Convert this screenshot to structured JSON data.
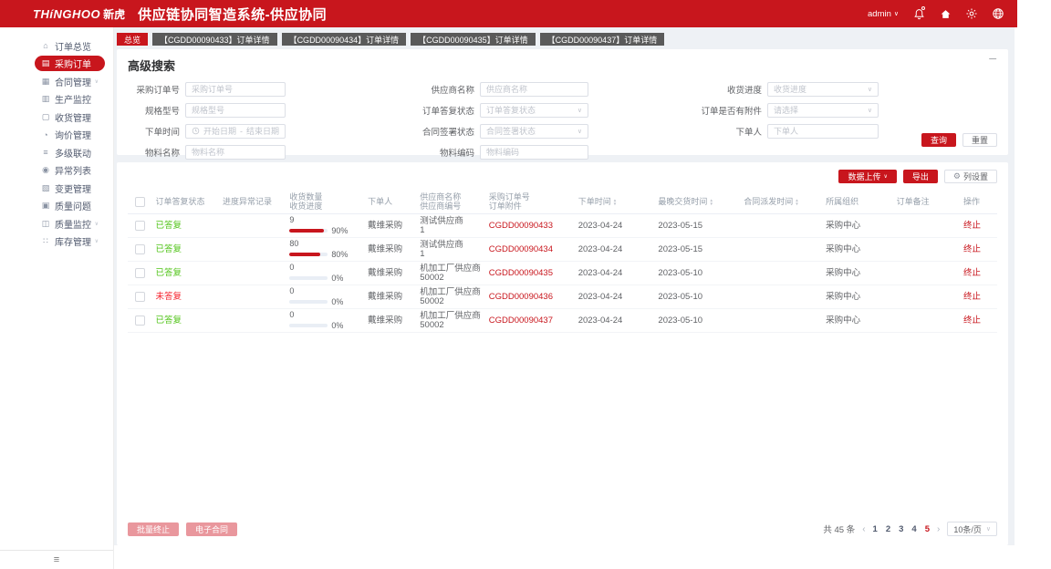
{
  "header": {
    "logo_en": "THíNGHOO",
    "logo_cn": "新虎",
    "title": "供应链协同智造系统-供应协同",
    "user": "admin",
    "brand_red": "#c8161d"
  },
  "sidebar": {
    "items": [
      {
        "id": "order-overview",
        "label": "订单总览",
        "icon": "order-overview-icon",
        "glyph": "⌂",
        "active": false,
        "expandable": false
      },
      {
        "id": "purchase-order",
        "label": "采购订单",
        "icon": "purchase-order-icon",
        "glyph": "▤",
        "active": true,
        "expandable": false
      },
      {
        "id": "contract-management",
        "label": "合同管理",
        "icon": "contract-management-icon",
        "glyph": "▦",
        "active": false,
        "expandable": true
      },
      {
        "id": "production-monitoring",
        "label": "生产监控",
        "icon": "production-monitoring-icon",
        "glyph": "▥",
        "active": false,
        "expandable": false
      },
      {
        "id": "receiving-management",
        "label": "收货管理",
        "icon": "receiving-management-icon",
        "glyph": "▢",
        "active": false,
        "expandable": false
      },
      {
        "id": "inquiry-management",
        "label": "询价管理",
        "icon": "inquiry-management-icon",
        "glyph": "◔",
        "active": false,
        "expandable": false
      },
      {
        "id": "multi-level-linkage",
        "label": "多级联动",
        "icon": "multi-level-linkage-icon",
        "glyph": "≡",
        "active": false,
        "expandable": false
      },
      {
        "id": "exception-list",
        "label": "异常列表",
        "icon": "exception-list-icon",
        "glyph": "◉",
        "active": false,
        "expandable": false
      },
      {
        "id": "change-management",
        "label": "变更管理",
        "icon": "change-management-icon",
        "glyph": "▧",
        "active": false,
        "expandable": false
      },
      {
        "id": "quality-issues",
        "label": "质量问题",
        "icon": "quality-issues-icon",
        "glyph": "▣",
        "active": false,
        "expandable": false
      },
      {
        "id": "quality-monitoring",
        "label": "质量监控",
        "icon": "quality-monitoring-icon",
        "glyph": "◫",
        "active": false,
        "expandable": true
      },
      {
        "id": "inventory-management",
        "label": "库存管理",
        "icon": "inventory-management-icon",
        "glyph": "∷",
        "active": false,
        "expandable": true
      }
    ]
  },
  "tabs": [
    {
      "id": "overview",
      "label": "总览",
      "active": true
    },
    {
      "id": "cgdd00090433",
      "label": "【CGDD00090433】订单详情",
      "active": false
    },
    {
      "id": "cgdd00090434",
      "label": "【CGDD00090434】订单详情",
      "active": false
    },
    {
      "id": "cgdd00090435",
      "label": "【CGDD00090435】订单详情",
      "active": false
    },
    {
      "id": "cgdd00090437",
      "label": "【CGDD00090437】订单详情",
      "active": false
    }
  ],
  "search": {
    "title": "高级搜索",
    "columns": [
      [
        {
          "name": "purchase-order-no",
          "label": "采购订单号",
          "type": "input",
          "placeholder": "采购订单号"
        },
        {
          "name": "spec-model",
          "label": "规格型号",
          "type": "input",
          "placeholder": "规格型号"
        },
        {
          "name": "order-time",
          "label": "下单时间",
          "type": "daterange",
          "start_placeholder": "开始日期",
          "separator": "-",
          "end_placeholder": "结束日期"
        },
        {
          "name": "material-name",
          "label": "物料名称",
          "type": "input",
          "placeholder": "物料名称"
        }
      ],
      [
        {
          "name": "supplier-name",
          "label": "供应商名称",
          "type": "input",
          "placeholder": "供应商名称"
        },
        {
          "name": "order-reply-status",
          "label": "订单答复状态",
          "type": "select",
          "placeholder": "订单答复状态"
        },
        {
          "name": "contract-sign-status",
          "label": "合同签署状态",
          "type": "select",
          "placeholder": "合同签署状态"
        },
        {
          "name": "material-code",
          "label": "物料编码",
          "type": "input",
          "placeholder": "物料编码"
        }
      ],
      [
        {
          "name": "receiving-progress",
          "label": "收货进度",
          "type": "select",
          "placeholder": "收货进度"
        },
        {
          "name": "order-has-attachment",
          "label": "订单是否有附件",
          "type": "select",
          "placeholder": "请选择"
        },
        {
          "name": "orderer",
          "label": "下单人",
          "type": "input",
          "placeholder": "下单人"
        }
      ]
    ],
    "query_label": "查询",
    "reset_label": "重置"
  },
  "toolbar": {
    "upload_label": "数据上传",
    "export_label": "导出",
    "column_settings_label": "列设置"
  },
  "table": {
    "headers": [
      {
        "key": "select",
        "type": "checkbox",
        "lines": []
      },
      {
        "key": "reply_status",
        "lines": [
          "订单答复状态"
        ]
      },
      {
        "key": "progress_exception",
        "lines": [
          "进度异常记录"
        ]
      },
      {
        "key": "receiving",
        "lines": [
          "收货数量",
          "收货进度"
        ]
      },
      {
        "key": "orderer",
        "lines": [
          "下单人"
        ]
      },
      {
        "key": "supplier",
        "lines": [
          "供应商名称",
          "供应商编号"
        ]
      },
      {
        "key": "order_no",
        "lines": [
          "采购订单号",
          "订单附件"
        ]
      },
      {
        "key": "order_time",
        "lines": [
          "下单时间"
        ],
        "sortable": true
      },
      {
        "key": "latest_delivery_time",
        "lines": [
          "最晚交货时间"
        ],
        "sortable": true
      },
      {
        "key": "contract_dispatch_time",
        "lines": [
          "合同派发时间"
        ],
        "sortable": true
      },
      {
        "key": "org",
        "lines": [
          "所属组织"
        ]
      },
      {
        "key": "remark",
        "lines": [
          "订单备注"
        ]
      },
      {
        "key": "action",
        "lines": [
          "操作"
        ]
      }
    ],
    "status_colors": {
      "replied": "#52c41a",
      "unreplied": "#f5222d"
    },
    "rows": [
      {
        "reply_status": "已答复",
        "reply_state": "replied",
        "progress_exception": "",
        "receive_qty": "9",
        "receive_pct": 90,
        "receive_pct_label": "90%",
        "orderer": "戴维采购",
        "supplier_name": "测试供应商",
        "supplier_code": "1",
        "order_no": "CGDD00090433",
        "order_time": "2023-04-24",
        "latest_delivery_time": "2023-05-15",
        "contract_dispatch_time": "",
        "org": "采购中心",
        "remark": "",
        "action": "终止"
      },
      {
        "reply_status": "已答复",
        "reply_state": "replied",
        "progress_exception": "",
        "receive_qty": "80",
        "receive_pct": 80,
        "receive_pct_label": "80%",
        "orderer": "戴维采购",
        "supplier_name": "测试供应商",
        "supplier_code": "1",
        "order_no": "CGDD00090434",
        "order_time": "2023-04-24",
        "latest_delivery_time": "2023-05-15",
        "contract_dispatch_time": "",
        "org": "采购中心",
        "remark": "",
        "action": "终止"
      },
      {
        "reply_status": "已答复",
        "reply_state": "replied",
        "progress_exception": "",
        "receive_qty": "0",
        "receive_pct": 0,
        "receive_pct_label": "0%",
        "orderer": "戴维采购",
        "supplier_name": "机加工厂供应商",
        "supplier_code": "50002",
        "order_no": "CGDD00090435",
        "order_time": "2023-04-24",
        "latest_delivery_time": "2023-05-10",
        "contract_dispatch_time": "",
        "org": "采购中心",
        "remark": "",
        "action": "终止"
      },
      {
        "reply_status": "未答复",
        "reply_state": "unreplied",
        "progress_exception": "",
        "receive_qty": "0",
        "receive_pct": 0,
        "receive_pct_label": "0%",
        "orderer": "戴维采购",
        "supplier_name": "机加工厂供应商",
        "supplier_code": "50002",
        "order_no": "CGDD00090436",
        "order_time": "2023-04-24",
        "latest_delivery_time": "2023-05-10",
        "contract_dispatch_time": "",
        "org": "采购中心",
        "remark": "",
        "action": "终止"
      },
      {
        "reply_status": "已答复",
        "reply_state": "replied",
        "progress_exception": "",
        "receive_qty": "0",
        "receive_pct": 0,
        "receive_pct_label": "0%",
        "orderer": "戴维采购",
        "supplier_name": "机加工厂供应商",
        "supplier_code": "50002",
        "order_no": "CGDD00090437",
        "order_time": "2023-04-24",
        "latest_delivery_time": "2023-05-10",
        "contract_dispatch_time": "",
        "org": "采购中心",
        "remark": "",
        "action": "终止"
      }
    ]
  },
  "footer": {
    "batch_terminate_label": "批量终止",
    "econtract_label": "电子合同",
    "total_label": "共 45 条",
    "prev_icon": "‹",
    "next_icon": "›",
    "pages": [
      "1",
      "2",
      "3",
      "4",
      "5"
    ],
    "active_page": "5",
    "page_size_label": "10条/页"
  }
}
